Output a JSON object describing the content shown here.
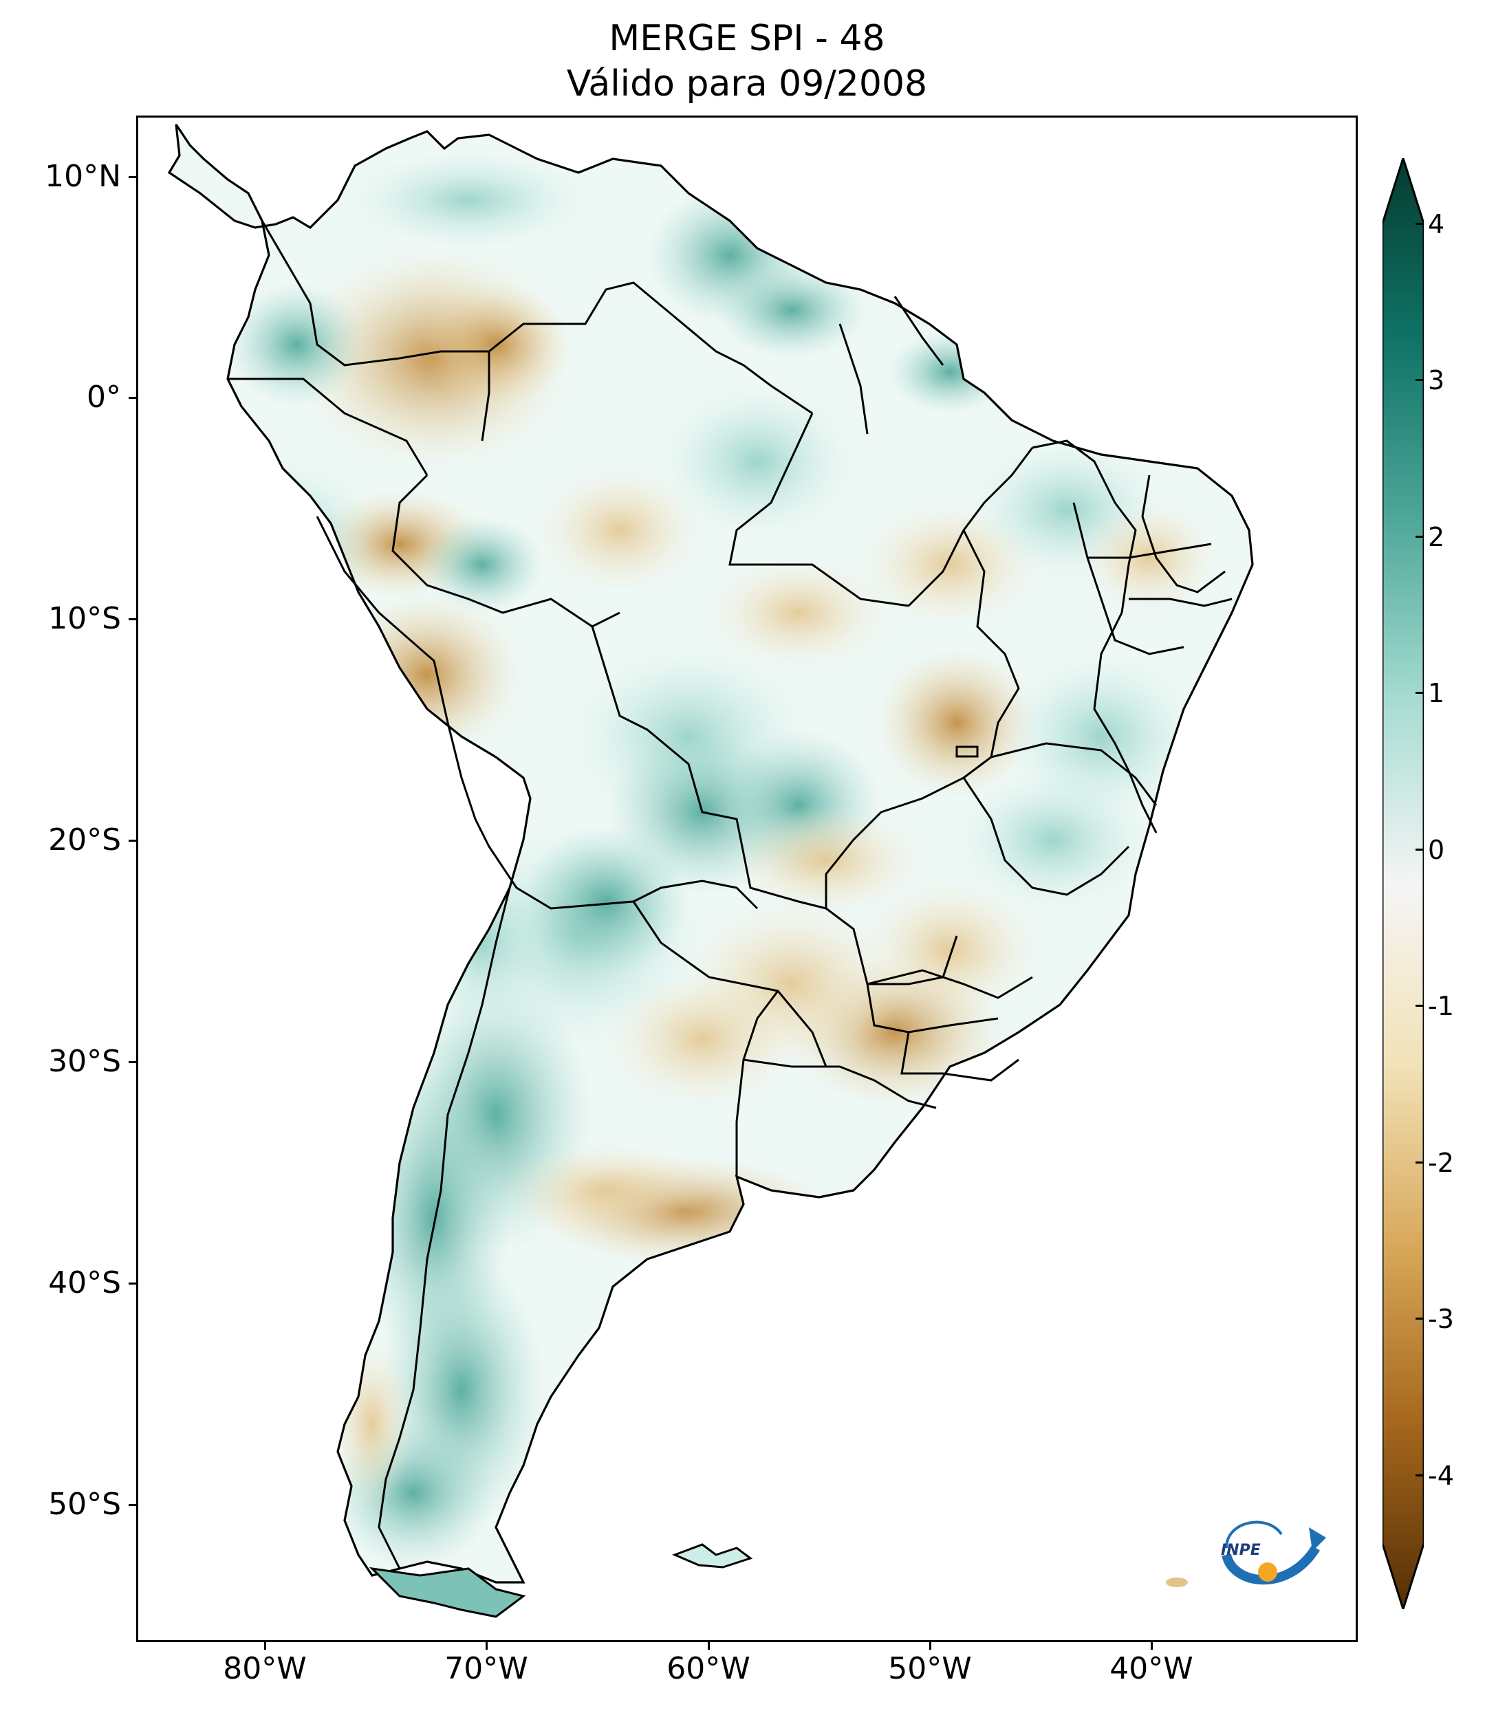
{
  "title": {
    "line1": "MERGE   SPI - 48",
    "line2": "Válido para 09/2008"
  },
  "axes": {
    "lat_labels": [
      "10°N",
      "0°",
      "10°S",
      "20°S",
      "30°S",
      "40°S",
      "50°S"
    ],
    "lon_labels": [
      "80°W",
      "70°W",
      "60°W",
      "50°W",
      "40°W"
    ]
  },
  "colorbar": {
    "ticks": [
      "4",
      "3",
      "2",
      "1",
      "0",
      "-1",
      "-2",
      "-3",
      "-4"
    ],
    "colors": [
      "#053c30",
      "#0f7366",
      "#4fa89a",
      "#a7dcd2",
      "#f5f5f5",
      "#f2e2b8",
      "#d8a85a",
      "#a4651c",
      "#543005"
    ]
  },
  "logo": {
    "text": "INPE",
    "icon": "inpe-logo"
  }
}
